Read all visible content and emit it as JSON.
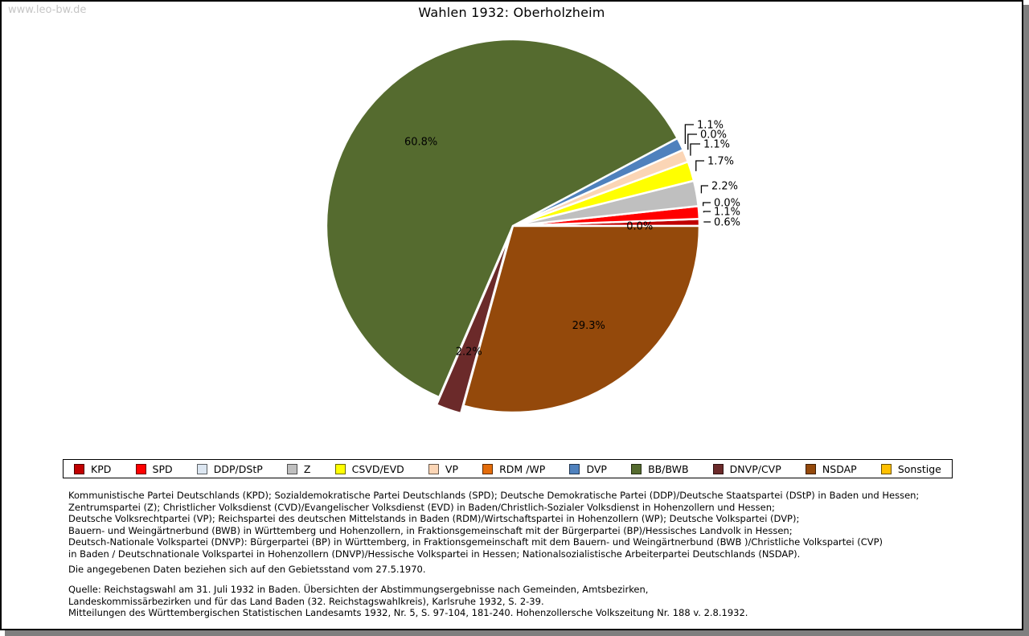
{
  "watermark": "www.leo-bw.de",
  "title": "Wahlen 1932: Oberholzheim",
  "chart_data": {
    "type": "pie",
    "title": "Wahlen 1932: Oberholzheim",
    "start_angle_deg": 0,
    "direction": "counterclockwise",
    "legend_position": "bottom",
    "units": "percent",
    "slices": [
      {
        "party": "KPD",
        "value": 0.6,
        "label": "0.6%",
        "color": "#C00000",
        "label_style": "callout"
      },
      {
        "party": "SPD",
        "value": 1.1,
        "label": "1.1%",
        "color": "#FF0000",
        "label_style": "callout"
      },
      {
        "party": "DDP/DStP",
        "value": 0.0,
        "label": "0.0%",
        "color": "#DCE6F1",
        "label_style": "callout"
      },
      {
        "party": "Z",
        "value": 2.2,
        "label": "2.2%",
        "color": "#BFBFBF",
        "label_style": "callout"
      },
      {
        "party": "CSVD/EVD",
        "value": 1.7,
        "label": "1.7%",
        "color": "#FFFF00",
        "label_style": "callout"
      },
      {
        "party": "VP",
        "value": 1.1,
        "label": "1.1%",
        "color": "#FBD5B5",
        "label_style": "callout"
      },
      {
        "party": "RDM /WP",
        "value": 0.0,
        "label": "0.0%",
        "color": "#E36C0A",
        "label_style": "callout"
      },
      {
        "party": "DVP",
        "value": 1.1,
        "label": "1.1%",
        "color": "#4F81BD",
        "label_style": "callout"
      },
      {
        "party": "BB/BWB",
        "value": 60.8,
        "label": "60.8%",
        "color": "#556B2F",
        "label_style": "inside"
      },
      {
        "party": "DNVP/CVP",
        "value": 2.2,
        "label": "2.2%",
        "color": "#6B2A2A",
        "label_style": "inside",
        "exploded": true
      },
      {
        "party": "NSDAP",
        "value": 29.3,
        "label": "29.3%",
        "color": "#94490B",
        "label_style": "inside"
      },
      {
        "party": "Sonstige",
        "value": 0.0,
        "label": "0.0%",
        "color": "#FFC000",
        "label_style": "inside-edge"
      }
    ]
  },
  "footnotes": {
    "parties_lines": [
      "Kommunistische Partei Deutschlands (KPD); Sozialdemokratische Partei Deutschlands (SPD); Deutsche Demokratische Partei (DDP)/Deutsche Staatspartei (DStP) in Baden und Hessen;",
      "Zentrumspartei (Z); Christlicher Volksdienst (CVD)/Evangelischer Volksdienst (EVD) in Baden/Christlich-Sozialer Volksdienst in Hohenzollern und Hessen;",
      "Deutsche Volksrechtpartei (VP); Reichspartei des deutschen Mittelstands in Baden (RDM)/Wirtschaftspartei in Hohenzollern (WP); Deutsche Volkspartei (DVP);",
      "Bauern- und Weingärtnerbund (BWB) in Württemberg und Hohenzollern, in Fraktionsgemeinschaft mit der Bürgerpartei (BP)/Hessisches Landvolk in Hessen;",
      "Deutsch-Nationale Volkspartei (DNVP): Bürgerpartei (BP) in Württemberg, in Fraktionsgemeinschaft mit dem Bauern- und Weingärtnerbund (BWB )/Christliche Volkspartei (CVP)",
      "in Baden / Deutschnationale Volkspartei in Hohenzollern (DNVP)/Hessische Volkspartei in Hessen; Nationalsozialistische Arbeiterpartei Deutschlands (NSDAP)."
    ],
    "gebietsstand": "Die angegebenen Daten beziehen sich auf den Gebietsstand vom 27.5.1970.",
    "quelle_lines": [
      "Quelle: Reichstagswahl am 31. Juli 1932 in Baden. Übersichten der Abstimmungsergebnisse nach Gemeinden, Amtsbezirken,",
      "Landeskommissärbezirken und für das Land Baden (32. Reichstagswahlkreis), Karlsruhe 1932, S. 2-39.",
      "Mitteilungen des Württembergischen Statistischen Landesamts 1932, Nr. 5, S. 97-104, 181-240. Hohenzollersche Volkszeitung Nr. 188 v. 2.8.1932."
    ]
  }
}
